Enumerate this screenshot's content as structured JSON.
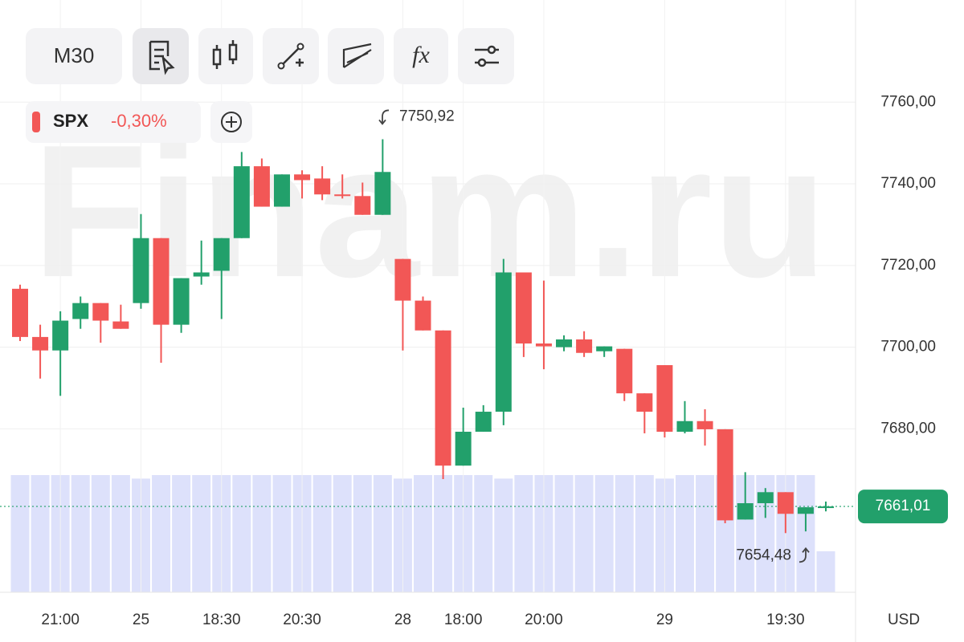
{
  "toolbar": {
    "timeframe": "M30",
    "indicators_label": "fx"
  },
  "ticker": {
    "symbol": "SPX",
    "change": "-0,30%"
  },
  "watermark": "Finam.ru",
  "chart_data": {
    "type": "candlestick",
    "categories": [
      null,
      null,
      "21:00",
      null,
      null,
      null,
      "25",
      null,
      null,
      null,
      "18:30",
      null,
      null,
      null,
      "20:30",
      null,
      null,
      null,
      null,
      "28",
      null,
      null,
      "18:00",
      null,
      null,
      null,
      "20:00",
      null,
      null,
      null,
      null,
      null,
      "29",
      null,
      null,
      null,
      null,
      null,
      "19:30",
      null,
      null
    ],
    "open": [
      7714.3,
      7702.5,
      7699.2,
      7706.9,
      7710.8,
      7706.3,
      7710.8,
      7726.7,
      7705.5,
      7717.3,
      7718.7,
      7726.7,
      7744.3,
      7734.4,
      7742.3,
      7741.3,
      7737.4,
      7737.0,
      7732.4,
      7721.6,
      7711.4,
      7704.1,
      7671.0,
      7679.3,
      7684.2,
      7718.3,
      7700.9,
      7700.0,
      7701.9,
      7699.0,
      7699.6,
      7688.7,
      7695.6,
      7679.3,
      7681.9,
      7679.9,
      7657.8,
      7661.8,
      7664.5,
      7659.2,
      7660.8
    ],
    "high": [
      7715.3,
      7705.5,
      7708.8,
      7712.4,
      7710.8,
      7710.4,
      7732.6,
      7726.7,
      7716.9,
      7726.1,
      7726.7,
      7747.8,
      7746.2,
      7742.3,
      7743.3,
      7744.3,
      7742.3,
      7740.3,
      7750.92,
      7721.6,
      7712.4,
      7704.1,
      7685.2,
      7685.8,
      7721.6,
      7718.3,
      7716.3,
      7702.9,
      7703.9,
      7700.2,
      7699.6,
      7688.7,
      7695.6,
      7686.8,
      7684.8,
      7679.9,
      7669.4,
      7665.5,
      7664.5,
      7660.8,
      7662.2
    ],
    "low": [
      7701.5,
      7692.3,
      7688.1,
      7704.5,
      7701.1,
      7704.5,
      7709.4,
      7696.2,
      7703.5,
      7715.3,
      7706.9,
      7726.7,
      7734.4,
      7734.4,
      7736.4,
      7736.0,
      7736.4,
      7732.4,
      7732.4,
      7699.2,
      7704.1,
      7667.7,
      7671.0,
      7679.3,
      7680.9,
      7697.6,
      7694.6,
      7699.0,
      7697.6,
      7697.6,
      7686.8,
      7678.9,
      7677.9,
      7678.9,
      7675.9,
      7656.9,
      7657.8,
      7658.2,
      7654.48,
      7654.9,
      7659.8
    ],
    "close": [
      7702.5,
      7699.2,
      7706.5,
      7710.8,
      7706.5,
      7704.5,
      7726.7,
      7705.5,
      7716.9,
      7718.3,
      7726.7,
      7744.3,
      7734.4,
      7742.3,
      7740.9,
      7737.4,
      7737.0,
      7732.4,
      7742.9,
      7711.4,
      7704.1,
      7671.0,
      7679.3,
      7684.2,
      7718.3,
      7700.9,
      7700.2,
      7701.9,
      7698.6,
      7700.2,
      7688.7,
      7684.2,
      7679.3,
      7681.9,
      7679.9,
      7657.6,
      7661.8,
      7664.5,
      7659.2,
      7660.8,
      7661.01
    ],
    "volume": [
      100,
      100,
      100,
      100,
      100,
      100,
      97,
      100,
      100,
      100,
      100,
      100,
      100,
      100,
      100,
      100,
      100,
      100,
      100,
      97,
      100,
      100,
      100,
      100,
      97,
      100,
      100,
      100,
      100,
      100,
      100,
      100,
      97,
      100,
      100,
      100,
      100,
      100,
      100,
      100,
      35
    ],
    "up_color": "#22a06b",
    "down_color": "#f25756",
    "volume_color": "#dde1fb",
    "ylim": [
      7640,
      7785
    ],
    "yticks": [
      {
        "value": 7680,
        "label": "7680,00"
      },
      {
        "value": 7700,
        "label": "7700,00"
      },
      {
        "value": 7720,
        "label": "7720,00"
      },
      {
        "value": 7740,
        "label": "7740,00"
      },
      {
        "value": 7760,
        "label": "7760,00"
      }
    ],
    "grid": true,
    "currency": "USD",
    "last_price": {
      "value": 7661.01,
      "label": "7661,01"
    },
    "annotations": [
      {
        "value": 7750.92,
        "label": "7750,92"
      },
      {
        "value": 7654.48,
        "label": "7654,48"
      }
    ]
  }
}
